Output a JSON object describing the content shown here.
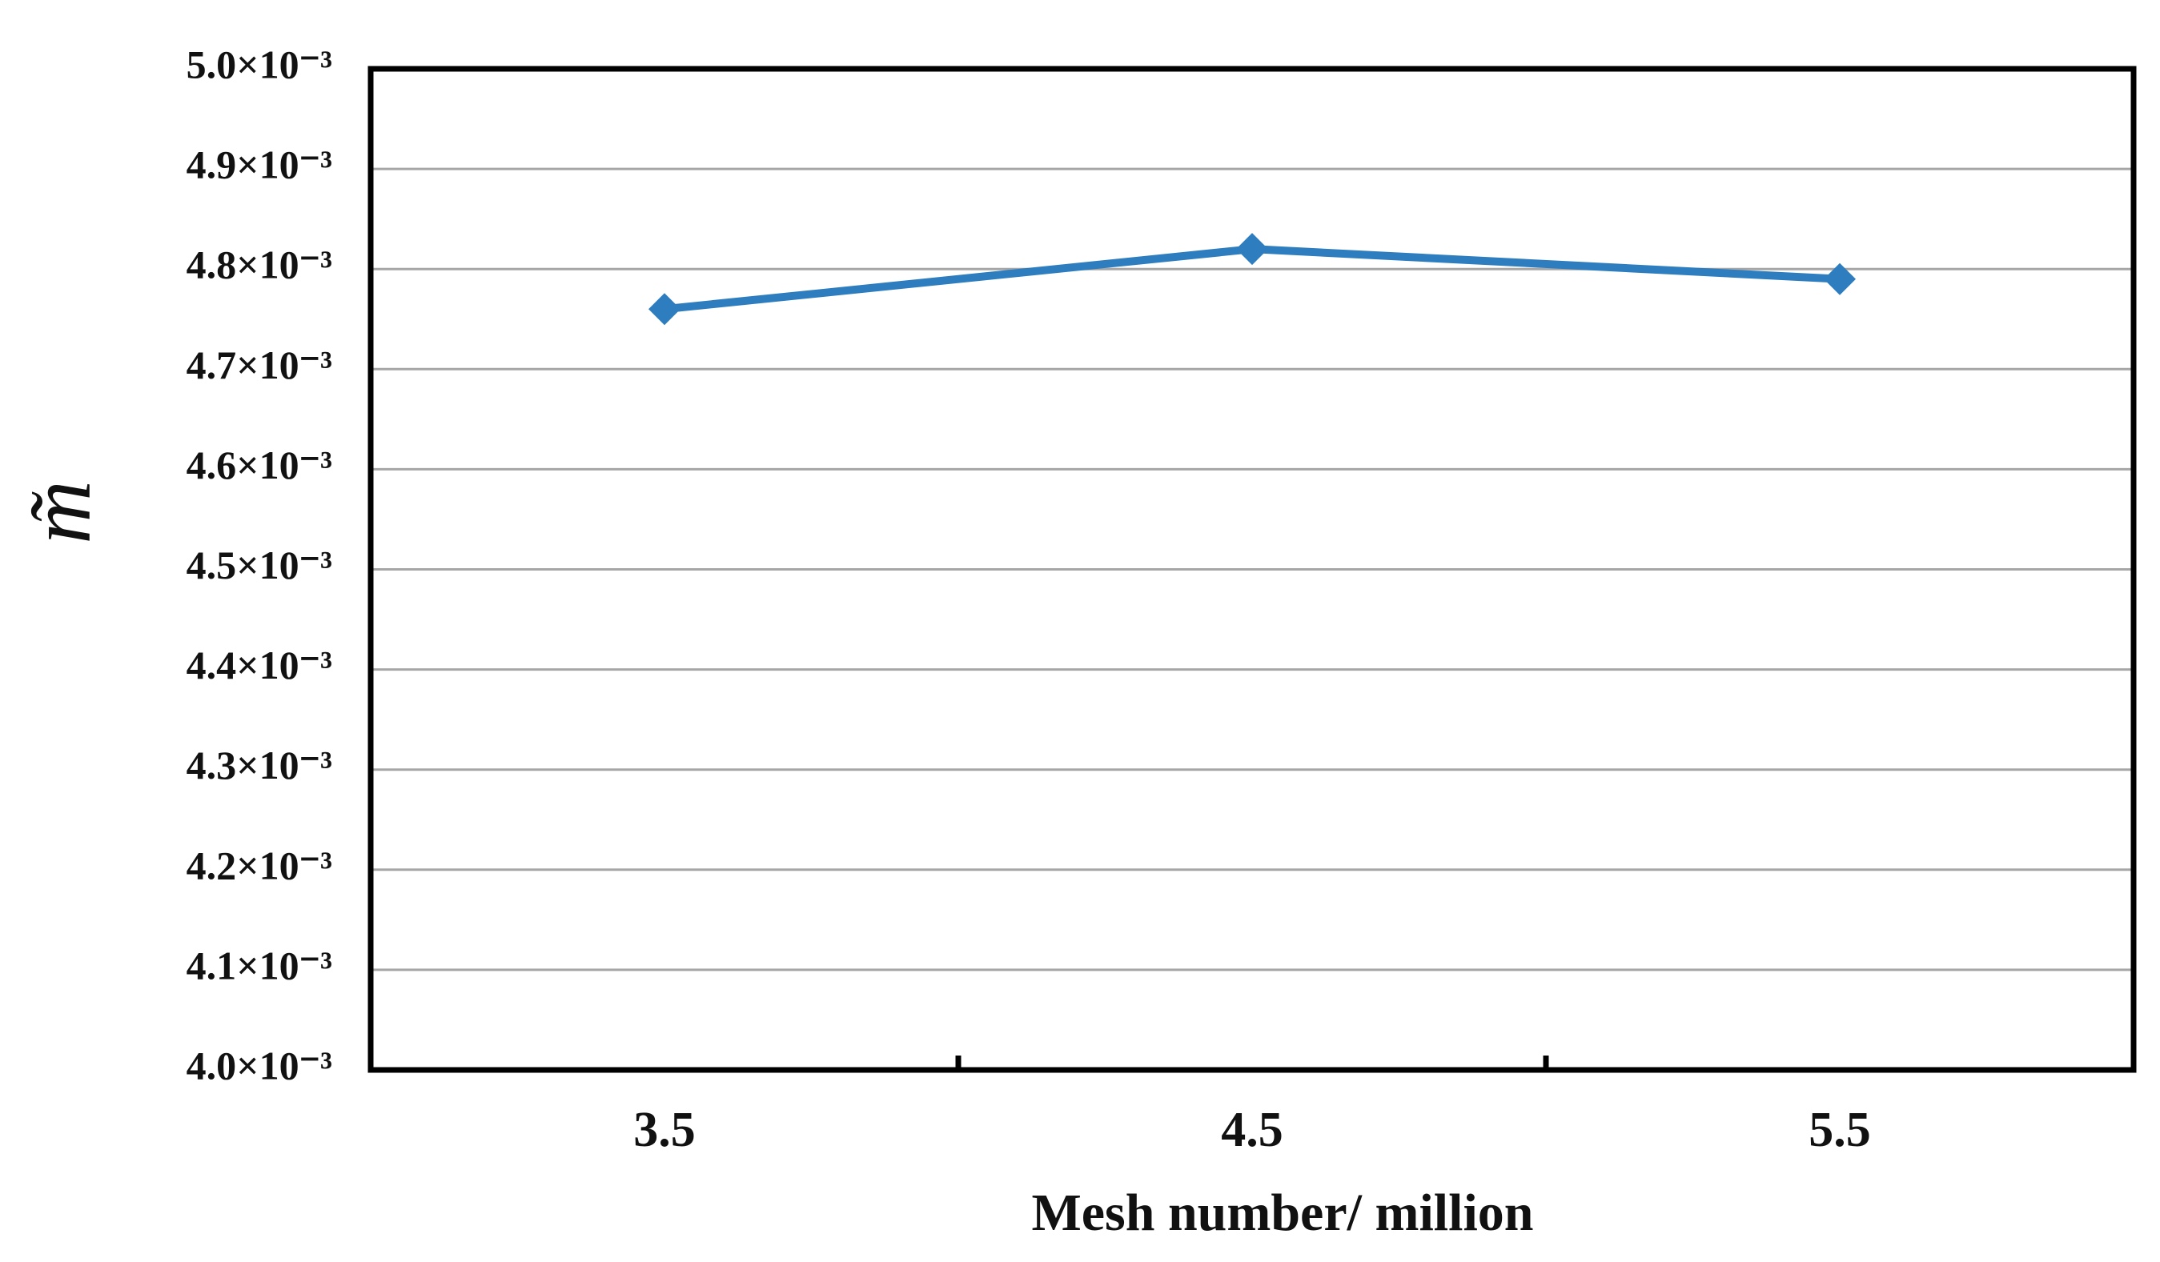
{
  "chart_data": {
    "type": "line",
    "x_label": "Mesh number/ million",
    "y_label": "m̃",
    "categories": [
      "3.5",
      "4.5",
      "5.5"
    ],
    "series": [
      {
        "name": "m̃",
        "color": "#2e7ebf",
        "values": [
          0.00476,
          0.00482,
          0.00479
        ]
      }
    ],
    "ylim": [
      0.004,
      0.005
    ],
    "yticks": [
      {
        "value": 0.004,
        "label": "4.0×10⁻³"
      },
      {
        "value": 0.0041,
        "label": "4.1×10⁻³"
      },
      {
        "value": 0.0042,
        "label": "4.2×10⁻³"
      },
      {
        "value": 0.0043,
        "label": "4.3×10⁻³"
      },
      {
        "value": 0.0044,
        "label": "4.4×10⁻³"
      },
      {
        "value": 0.0045,
        "label": "4.5×10⁻³"
      },
      {
        "value": 0.0046,
        "label": "4.6×10⁻³"
      },
      {
        "value": 0.0047,
        "label": "4.7×10⁻³"
      },
      {
        "value": 0.0048,
        "label": "4.8×10⁻³"
      },
      {
        "value": 0.0049,
        "label": "4.9×10⁻³"
      },
      {
        "value": 0.005,
        "label": "5.0×10⁻³"
      }
    ],
    "grid": true
  }
}
